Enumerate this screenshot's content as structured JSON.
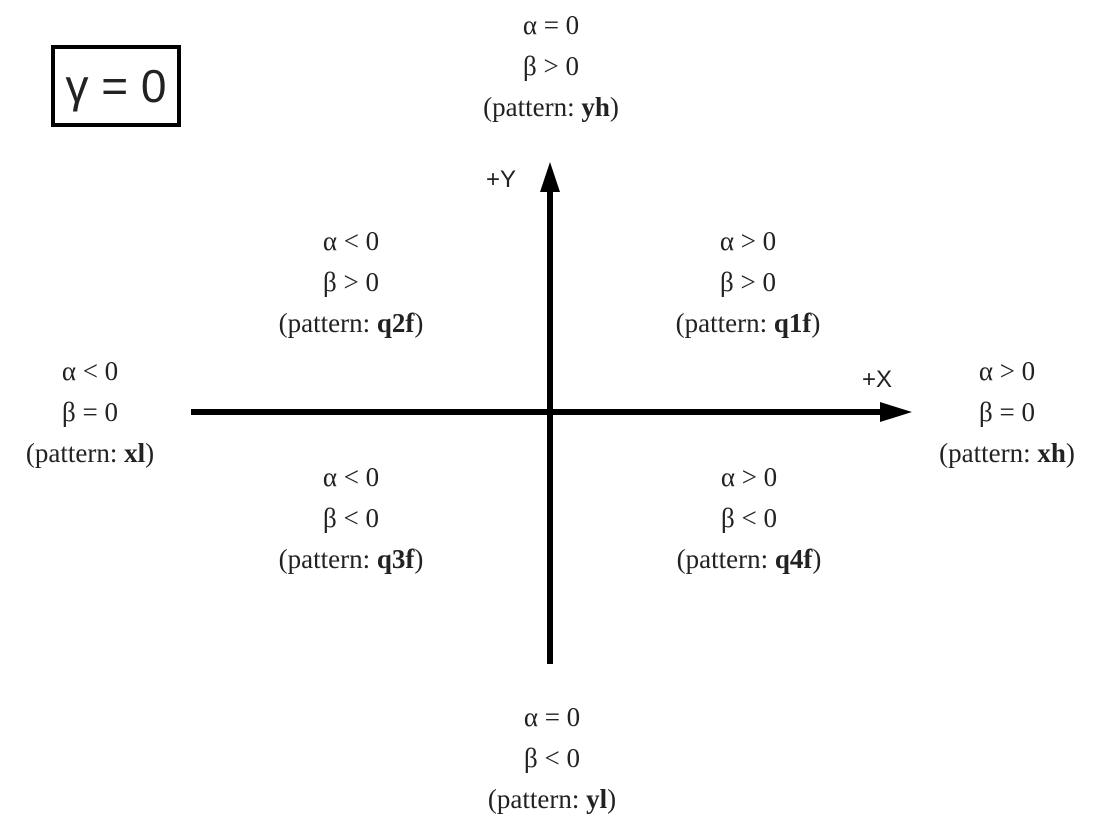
{
  "case_label": "γ = 0",
  "axes": {
    "x_label": "+X",
    "y_label": "+Y"
  },
  "pattern_prefix": "(pattern: ",
  "pattern_suffix": ")",
  "regions": {
    "top": {
      "alpha": "α = 0",
      "beta": "β > 0",
      "pattern": "yh"
    },
    "upper_left": {
      "alpha": "α < 0",
      "beta": "β > 0",
      "pattern": "q2f"
    },
    "upper_right": {
      "alpha": "α > 0",
      "beta": "β > 0",
      "pattern": "q1f"
    },
    "left": {
      "alpha": "α < 0",
      "beta": "β = 0",
      "pattern": "xl"
    },
    "right": {
      "alpha": "α > 0",
      "beta": "β = 0",
      "pattern": "xh"
    },
    "lower_left": {
      "alpha": "α < 0",
      "beta": "β < 0",
      "pattern": "q3f"
    },
    "lower_right": {
      "alpha": "α > 0",
      "beta": "β < 0",
      "pattern": "q4f"
    },
    "bottom": {
      "alpha": "α = 0",
      "beta": "β < 0",
      "pattern": "yl"
    }
  },
  "colors": {
    "axis": "#000000",
    "text": "#222222",
    "box_border": "#000000"
  }
}
